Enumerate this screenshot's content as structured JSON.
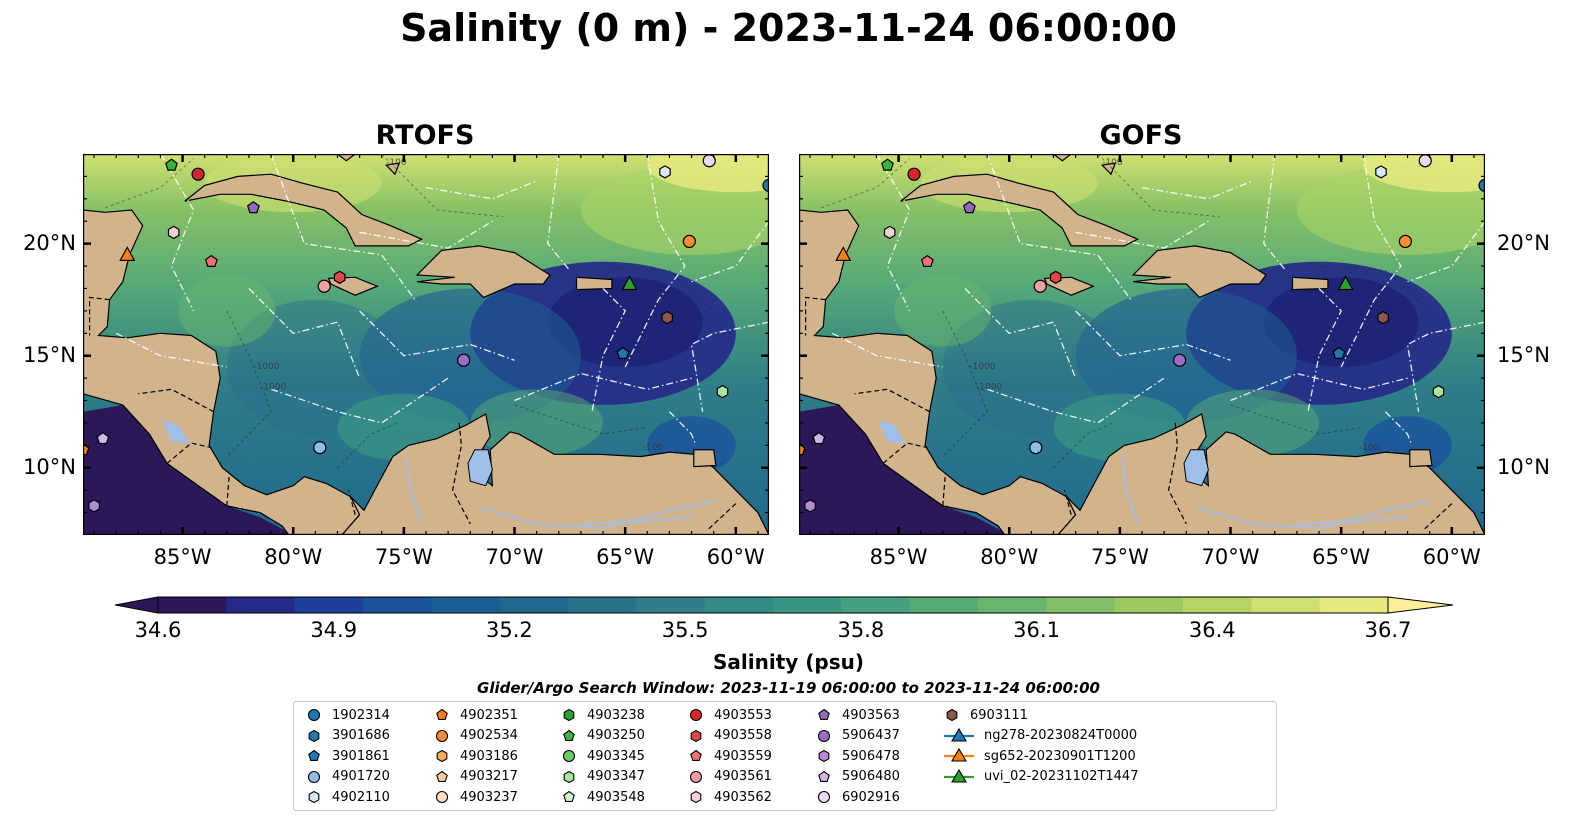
{
  "title": "Salinity (0 m) - 2023-11-24 06:00:00",
  "panels": [
    {
      "name": "RTOFS",
      "style": "rtofs"
    },
    {
      "name": "GOFS",
      "style": "gofs"
    }
  ],
  "map": {
    "lon_ticks": [
      "85°W",
      "80°W",
      "75°W",
      "70°W",
      "65°W",
      "60°W"
    ],
    "lat_ticks": [
      "20°N",
      "15°N",
      "10°N"
    ],
    "lon_range": [
      -89.5,
      -58.5
    ],
    "lat_range": [
      7,
      24
    ],
    "land_color": "#d2b48c",
    "contour_labels": [
      "-100",
      "-1000",
      "-1000",
      "-100"
    ]
  },
  "colorbar": {
    "label": "Salinity (psu)",
    "ticks": [
      "34.6",
      "34.9",
      "35.2",
      "35.5",
      "35.8",
      "36.1",
      "36.4",
      "36.7"
    ],
    "vmin": 34.6,
    "vmax": 36.7,
    "colormap": "haline",
    "extend": "both"
  },
  "search_window": "Glider/Argo Search Window: 2023-11-19 06:00:00 to 2023-11-24 06:00:00",
  "legend": [
    {
      "label": "1902314",
      "marker": "circle",
      "color": "#1f77b4"
    },
    {
      "label": "3901686",
      "marker": "hexagon",
      "color": "#1f77b4"
    },
    {
      "label": "3901861",
      "marker": "pentagon",
      "color": "#1f77b4"
    },
    {
      "label": "4901720",
      "marker": "circle",
      "color": "#8fbfe8"
    },
    {
      "label": "4902110",
      "marker": "hexagon",
      "color": "#d8e9f8"
    },
    {
      "label": "4902351",
      "marker": "pentagon",
      "color": "#ff7f0e"
    },
    {
      "label": "4902534",
      "marker": "circle",
      "color": "#ff8c2e"
    },
    {
      "label": "4903186",
      "marker": "hexagon",
      "color": "#ffaa55"
    },
    {
      "label": "4903217",
      "marker": "pentagon",
      "color": "#ffcc99"
    },
    {
      "label": "4903237",
      "marker": "circle",
      "color": "#ffe0c0"
    },
    {
      "label": "4903238",
      "marker": "hexagon",
      "color": "#2ca02c"
    },
    {
      "label": "4903250",
      "marker": "pentagon",
      "color": "#3cb43c"
    },
    {
      "label": "4903345",
      "marker": "circle",
      "color": "#66cc66"
    },
    {
      "label": "4903347",
      "marker": "hexagon",
      "color": "#a8e6a0"
    },
    {
      "label": "4903548",
      "marker": "pentagon",
      "color": "#d4f5cc"
    },
    {
      "label": "4903553",
      "marker": "circle",
      "color": "#d62728"
    },
    {
      "label": "4903558",
      "marker": "hexagon",
      "color": "#e04848"
    },
    {
      "label": "4903559",
      "marker": "pentagon",
      "color": "#ee7070"
    },
    {
      "label": "4903561",
      "marker": "circle",
      "color": "#f4a0a0"
    },
    {
      "label": "4903562",
      "marker": "hexagon",
      "color": "#fbd0d0"
    },
    {
      "label": "4903563",
      "marker": "pentagon",
      "color": "#9467bd"
    },
    {
      "label": "5906437",
      "marker": "circle",
      "color": "#9c6cc4"
    },
    {
      "label": "5906478",
      "marker": "hexagon",
      "color": "#b48ad6"
    },
    {
      "label": "5906480",
      "marker": "pentagon",
      "color": "#d0b4ea"
    },
    {
      "label": "6902916",
      "marker": "circle",
      "color": "#ecd8f8"
    },
    {
      "label": "6903111",
      "marker": "hexagon",
      "color": "#8c564b"
    },
    {
      "label": "ng278-20230824T0000",
      "marker": "triangle-line",
      "color": "#1f77b4"
    },
    {
      "label": "sg652-20230901T1200",
      "marker": "triangle-line",
      "color": "#ff7f0e"
    },
    {
      "label": "uvi_02-20231102T1447",
      "marker": "triangle-line",
      "color": "#2ca02c"
    }
  ],
  "markers": [
    {
      "id": "1902314",
      "lon": -58.5,
      "lat": 22.6
    },
    {
      "id": "3901861",
      "lon": -65.1,
      "lat": 15.1
    },
    {
      "id": "4901720",
      "lon": -78.8,
      "lat": 10.9
    },
    {
      "id": "4902110",
      "lon": -63.2,
      "lat": 23.2
    },
    {
      "id": "4902351",
      "lon": -89.5,
      "lat": 10.8
    },
    {
      "id": "4902534",
      "lon": -62.1,
      "lat": 20.1
    },
    {
      "id": "4903250",
      "lon": -85.5,
      "lat": 23.5
    },
    {
      "id": "4903347",
      "lon": -60.6,
      "lat": 13.4
    },
    {
      "id": "4903553",
      "lon": -84.3,
      "lat": 23.1
    },
    {
      "id": "4903558",
      "lon": -77.9,
      "lat": 18.5
    },
    {
      "id": "4903559",
      "lon": -83.7,
      "lat": 19.2
    },
    {
      "id": "4903561",
      "lon": -78.6,
      "lat": 18.1
    },
    {
      "id": "4903562",
      "lon": -85.4,
      "lat": 20.5
    },
    {
      "id": "4903563",
      "lon": -81.8,
      "lat": 21.6
    },
    {
      "id": "5906437",
      "lon": -72.3,
      "lat": 14.8
    },
    {
      "id": "5906478",
      "lon": -89.0,
      "lat": 8.3
    },
    {
      "id": "5906480",
      "lon": -88.6,
      "lat": 11.3
    },
    {
      "id": "6902916",
      "lon": -61.2,
      "lat": 23.7
    },
    {
      "id": "6903111",
      "lon": -63.1,
      "lat": 16.7
    },
    {
      "id": "sg652-20230901T1200",
      "lon": -87.5,
      "lat": 19.5
    },
    {
      "id": "uvi_02-20231102T1447",
      "lon": -64.8,
      "lat": 18.2
    }
  ]
}
